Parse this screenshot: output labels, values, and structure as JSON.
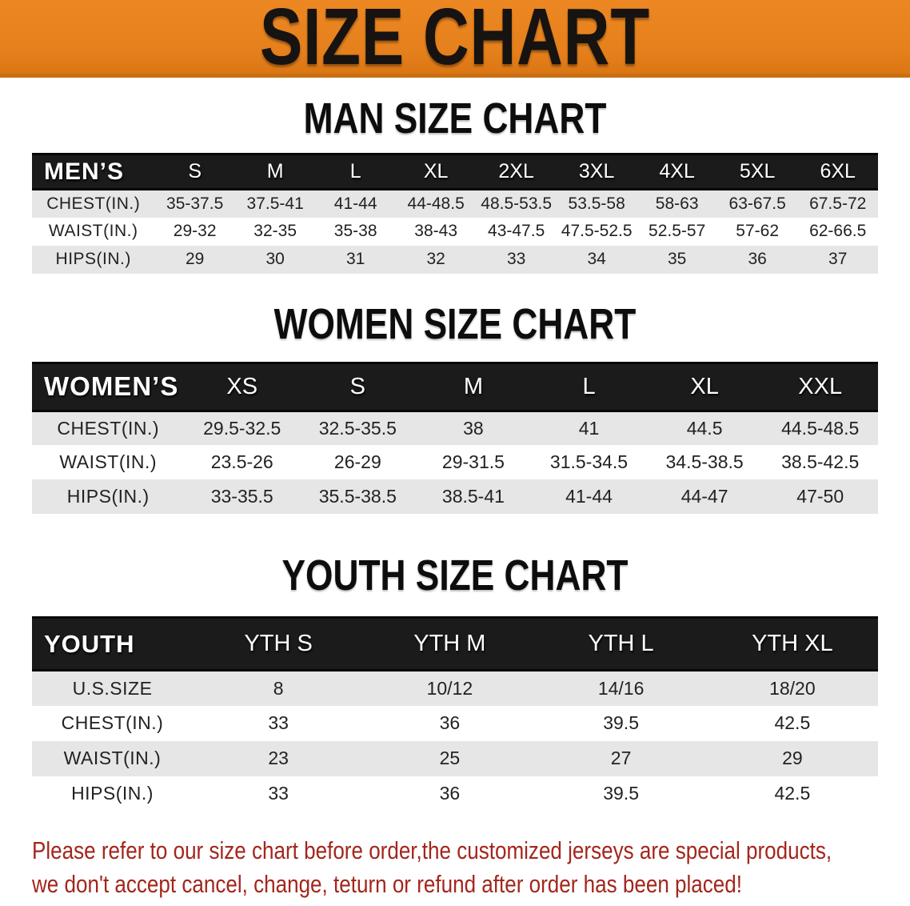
{
  "banner": {
    "title": "SIZE CHART"
  },
  "sections": [
    {
      "heading": "MAN SIZE CHART",
      "group_label": "MEN’S",
      "label_col_width": "14.5%",
      "columns": [
        "S",
        "M",
        "L",
        "XL",
        "2XL",
        "3XL",
        "4XL",
        "5XL",
        "6XL"
      ],
      "rows": [
        {
          "label": "CHEST(IN.)",
          "values": [
            "35-37.5",
            "37.5-41",
            "41-44",
            "44-48.5",
            "48.5-53.5",
            "53.5-58",
            "58-63",
            "63-67.5",
            "67.5-72"
          ]
        },
        {
          "label": "WAIST(IN.)",
          "values": [
            "29-32",
            "32-35",
            "35-38",
            "38-43",
            "43-47.5",
            "47.5-52.5",
            "52.5-57",
            "57-62",
            "62-66.5"
          ]
        },
        {
          "label": "HIPS(IN.)",
          "values": [
            "29",
            "30",
            "31",
            "32",
            "33",
            "34",
            "35",
            "36",
            "37"
          ]
        }
      ]
    },
    {
      "heading": "WOMEN SIZE CHART",
      "group_label": "WOMEN’S",
      "label_col_width": "18%",
      "columns": [
        "XS",
        "S",
        "M",
        "L",
        "XL",
        "XXL"
      ],
      "rows": [
        {
          "label": "CHEST(IN.)",
          "values": [
            "29.5-32.5",
            "32.5-35.5",
            "38",
            "41",
            "44.5",
            "44.5-48.5"
          ]
        },
        {
          "label": "WAIST(IN.)",
          "values": [
            "23.5-26",
            "26-29",
            "29-31.5",
            "31.5-34.5",
            "34.5-38.5",
            "38.5-42.5"
          ]
        },
        {
          "label": "HIPS(IN.)",
          "values": [
            "33-35.5",
            "35.5-38.5",
            "38.5-41",
            "41-44",
            "44-47",
            "47-50"
          ]
        }
      ]
    },
    {
      "heading": "YOUTH SIZE CHART",
      "group_label": "YOUTH",
      "label_col_width": "19%",
      "columns": [
        "YTH S",
        "YTH M",
        "YTH L",
        "YTH XL"
      ],
      "rows": [
        {
          "label": "U.S.SIZE",
          "values": [
            "8",
            "10/12",
            "14/16",
            "18/20"
          ]
        },
        {
          "label": "CHEST(IN.)",
          "values": [
            "33",
            "36",
            "39.5",
            "42.5"
          ]
        },
        {
          "label": "WAIST(IN.)",
          "values": [
            "23",
            "25",
            "27",
            "29"
          ]
        },
        {
          "label": "HIPS(IN.)",
          "values": [
            "33",
            "36",
            "39.5",
            "42.5"
          ]
        }
      ]
    }
  ],
  "footer_note": {
    "line1": "Please refer to our size chart before order,the customized jerseys are special products,",
    "line2": "we don't accept cancel, change, teturn or refund after order has been placed!"
  },
  "colors": {
    "banner_bg": "#E5801C",
    "banner_border": "#C96F12",
    "banner_text": "#161310",
    "header_band_bg": "#1B1B1B",
    "header_band_text": "#FFFFFF",
    "row_alt_bg": "#E7E6E6",
    "row_text": "#222222",
    "heading_text": "#0D0D0D",
    "note_text": "#A3261D"
  }
}
